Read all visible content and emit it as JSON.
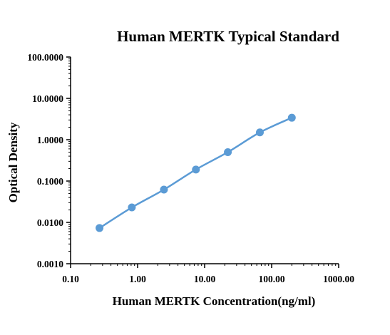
{
  "chart_data": {
    "type": "scatter",
    "title": "Human MERTK  Typical Standard",
    "xlabel": "Human MERTK Concentration(ng/ml)",
    "ylabel": "Optical Density",
    "x_scale": "log",
    "y_scale": "log",
    "xlim": [
      0.1,
      1000
    ],
    "ylim": [
      0.001,
      100
    ],
    "x_ticks": [
      0.1,
      1,
      10,
      100,
      1000
    ],
    "x_tick_labels": [
      "0.10",
      "1.00",
      "10.00",
      "100.00",
      "1000.00"
    ],
    "y_ticks": [
      0.001,
      0.01,
      0.1,
      1,
      10,
      100
    ],
    "y_tick_labels": [
      "0.0010",
      "0.0100",
      "0.1000",
      "1.0000",
      "10.0000",
      "100.0000"
    ],
    "grid": false,
    "series": [
      {
        "x": [
          0.27,
          0.82,
          2.47,
          7.41,
          22.2,
          66.7,
          200
        ],
        "y": [
          0.0073,
          0.023,
          0.062,
          0.19,
          0.5,
          1.5,
          3.4
        ],
        "color": "#5b9bd5",
        "marker": "circle",
        "connected": "smooth"
      }
    ]
  }
}
